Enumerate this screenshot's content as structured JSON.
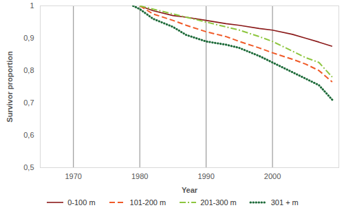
{
  "chart_data": {
    "type": "line",
    "x_label": "Year",
    "y_label": "Survivor proportion",
    "x": [
      1979,
      1980,
      1982,
      1985,
      1987,
      1990,
      1993,
      1995,
      1998,
      2000,
      2003,
      2005,
      2007,
      2009
    ],
    "series": [
      {
        "name": "0-100 m",
        "color": "#8b1a1a",
        "line_style": "solid",
        "values": [
          null,
          1.0,
          0.985,
          0.97,
          0.965,
          0.955,
          0.945,
          0.94,
          0.93,
          0.925,
          0.912,
          0.9,
          0.888,
          0.875
        ]
      },
      {
        "name": "101-200 m",
        "color": "#f05a28",
        "line_style": "dashed",
        "values": [
          null,
          1.0,
          0.975,
          0.955,
          0.94,
          0.92,
          0.905,
          0.89,
          0.87,
          0.855,
          0.835,
          0.82,
          0.8,
          0.765
        ]
      },
      {
        "name": "201-300 m",
        "color": "#8dc63f",
        "line_style": "dashdot",
        "values": [
          null,
          1.0,
          0.99,
          0.975,
          0.965,
          0.95,
          0.935,
          0.925,
          0.905,
          0.89,
          0.86,
          0.84,
          0.825,
          0.78
        ]
      },
      {
        "name": "301 + m",
        "color": "#1e6b3a",
        "line_style": "dotted",
        "values": [
          1.0,
          0.99,
          0.96,
          0.935,
          0.91,
          0.89,
          0.88,
          0.87,
          0.845,
          0.825,
          0.795,
          0.775,
          0.755,
          0.71
        ]
      }
    ],
    "xlim": [
      1965,
      2010
    ],
    "xticks": [
      1970,
      1980,
      1990,
      2000
    ],
    "ylim": [
      0.5,
      1
    ],
    "yticks": [
      {
        "value": 0.5,
        "label": "0,5"
      },
      {
        "value": 0.6,
        "label": "0,6"
      },
      {
        "value": 0.7,
        "label": "0,7"
      },
      {
        "value": 0.8,
        "label": "0,8"
      },
      {
        "value": 0.9,
        "label": "0,9"
      },
      1
    ],
    "grid": "x",
    "legend": "bottom"
  }
}
